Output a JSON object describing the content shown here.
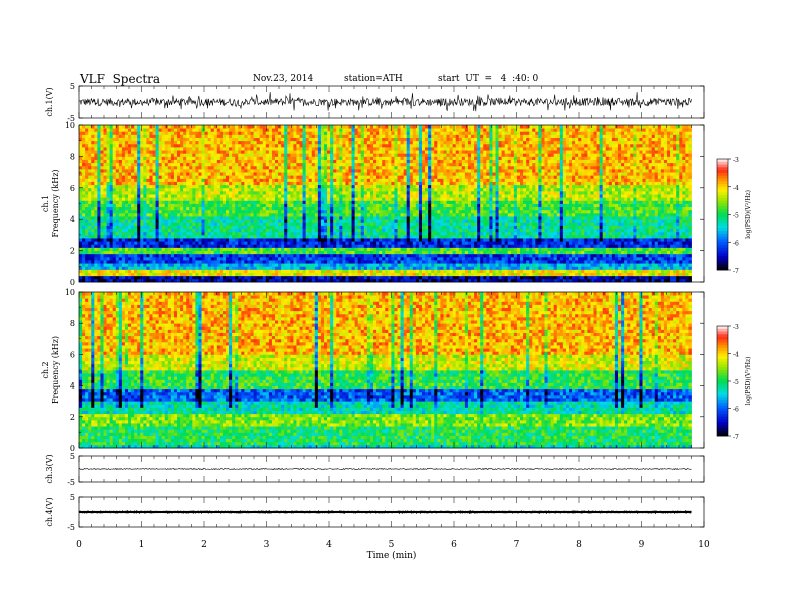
{
  "header": {
    "title": "VLF  Spectra",
    "date": "Nov.23, 2014",
    "station": "station=ATH",
    "start": "start  UT  =   4  :40: 0"
  },
  "chart_data": [
    {
      "type": "line",
      "name": "ch1-waveform",
      "ylabel": "ch.1(V)",
      "ylim": [
        -5,
        5
      ],
      "yticks": [
        "5",
        "-5"
      ],
      "xlim": [
        0,
        10
      ],
      "data_extent": [
        0,
        9.8
      ],
      "baseline": 0,
      "amplitude": 1.2,
      "noise": "high"
    },
    {
      "type": "heatmap",
      "name": "ch1-spectrogram",
      "ylabel": "ch.1\nFrequency  (kHz)",
      "ylim": [
        0,
        10
      ],
      "yticks": [
        "0",
        "2",
        "4",
        "6",
        "8",
        "10"
      ],
      "xlim": [
        0,
        10
      ],
      "data_extent": [
        0,
        9.8
      ],
      "bands": [
        {
          "from": 0,
          "to": 0.4,
          "level": -6.6
        },
        {
          "from": 0.4,
          "to": 0.9,
          "level": -4.2
        },
        {
          "from": 0.9,
          "to": 1.3,
          "level": -5.6
        },
        {
          "from": 1.3,
          "to": 1.8,
          "level": -6.2
        },
        {
          "from": 1.8,
          "to": 2.2,
          "level": -4.8
        },
        {
          "from": 2.2,
          "to": 2.8,
          "level": -6.3
        },
        {
          "from": 2.8,
          "to": 4.2,
          "level": -5.2
        },
        {
          "from": 4.2,
          "to": 5.2,
          "level": -4.8
        },
        {
          "from": 5.2,
          "to": 6.2,
          "level": -4.4
        },
        {
          "from": 6.2,
          "to": 10,
          "level": -3.9
        }
      ],
      "colorbar": {
        "label": "log(PSD)(V²/Hz)",
        "ticks": [
          "-3",
          "-4",
          "-5",
          "-6",
          "-7"
        ],
        "range": [
          -7,
          -3
        ]
      }
    },
    {
      "type": "heatmap",
      "name": "ch2-spectrogram",
      "ylabel": "ch.2\nFrequency  (kHz)",
      "ylim": [
        0,
        10
      ],
      "yticks": [
        "0",
        "2",
        "4",
        "6",
        "8",
        "10"
      ],
      "xlim": [
        0,
        10
      ],
      "data_extent": [
        0,
        9.8
      ],
      "bands": [
        {
          "from": 0,
          "to": 0.3,
          "level": -5.4
        },
        {
          "from": 0.3,
          "to": 1.5,
          "level": -5.0
        },
        {
          "from": 1.5,
          "to": 2.2,
          "level": -4.6
        },
        {
          "from": 2.2,
          "to": 3.0,
          "level": -5.3
        },
        {
          "from": 3.0,
          "to": 3.9,
          "level": -6.0
        },
        {
          "from": 3.9,
          "to": 5.0,
          "level": -4.9
        },
        {
          "from": 5.0,
          "to": 6.0,
          "level": -4.3
        },
        {
          "from": 6.0,
          "to": 10,
          "level": -3.9
        }
      ],
      "colorbar": {
        "label": "log(PSD)(V²/Hz)",
        "ticks": [
          "-3",
          "-4",
          "-5",
          "-6",
          "-7"
        ],
        "range": [
          -7,
          -3
        ]
      }
    },
    {
      "type": "line",
      "name": "ch3-waveform",
      "ylabel": "ch.3(V)",
      "ylim": [
        -5,
        5
      ],
      "yticks": [
        "5",
        "-5"
      ],
      "xlim": [
        0,
        10
      ],
      "data_extent": [
        0,
        9.8
      ],
      "baseline": 0,
      "amplitude": 0.2,
      "noise": "low"
    },
    {
      "type": "line",
      "name": "ch4-waveform",
      "ylabel": "ch.4(V)",
      "ylim": [
        -5,
        5
      ],
      "yticks": [
        "5",
        "-5"
      ],
      "xlim": [
        0,
        10
      ],
      "data_extent": [
        0,
        9.8
      ],
      "baseline": 0,
      "amplitude": 0.25,
      "noise": "dense"
    }
  ],
  "xaxis": {
    "label": "Time  (min)",
    "ticks": [
      "0",
      "1",
      "2",
      "3",
      "4",
      "5",
      "6",
      "7",
      "8",
      "9",
      "10"
    ],
    "range": [
      0,
      10
    ]
  }
}
